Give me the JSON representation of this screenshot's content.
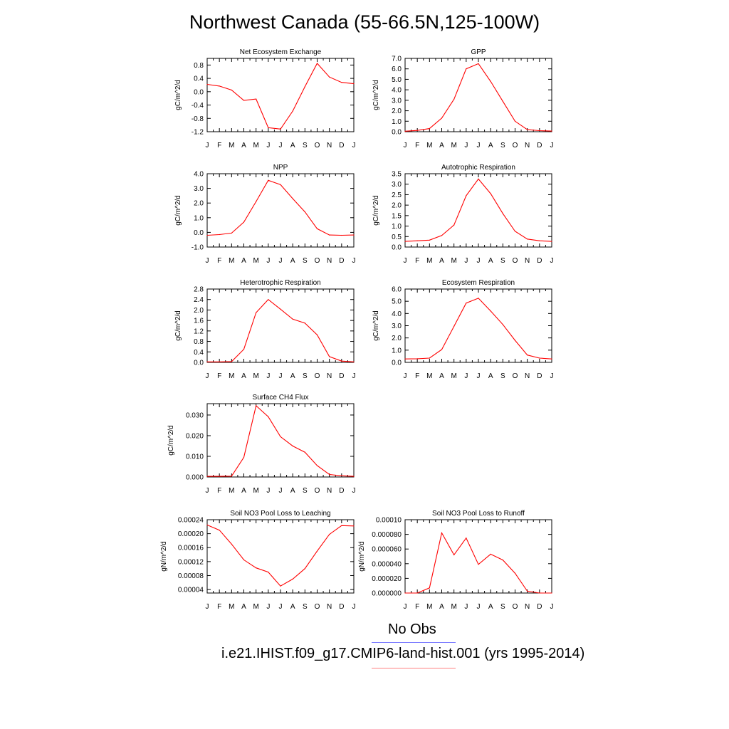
{
  "title": "Northwest Canada (55-66.5N,125-100W)",
  "legend": {
    "obs_label": "No Obs",
    "obs_color": "#8080ff",
    "model_label": "i.e21.IHIST.f09_g17.CMIP6-land-hist.001 (yrs 1995-2014)",
    "model_color": "#ff8080"
  },
  "series_color": "#ff0000",
  "chart_data": [
    {
      "type": "line",
      "title": "Net Ecosystem Exchange",
      "ylabel": "gC/m^2/d",
      "categories": [
        "J",
        "F",
        "M",
        "A",
        "M",
        "J",
        "J",
        "A",
        "S",
        "O",
        "N",
        "D",
        "J"
      ],
      "values": [
        0.22,
        0.17,
        0.05,
        -0.26,
        -0.22,
        -1.08,
        -1.12,
        -0.58,
        0.15,
        0.85,
        0.44,
        0.28,
        0.24
      ],
      "ylim": [
        -1.2,
        1.0
      ],
      "yticks": [
        "-1.2",
        "-0.8",
        "-0.4",
        "0.0",
        "0.4",
        "0.8"
      ]
    },
    {
      "type": "line",
      "title": "GPP",
      "ylabel": "gC/m^2/d",
      "categories": [
        "J",
        "F",
        "M",
        "A",
        "M",
        "J",
        "J",
        "A",
        "S",
        "O",
        "N",
        "D",
        "J"
      ],
      "values": [
        0.05,
        0.12,
        0.3,
        1.3,
        3.1,
        6.0,
        6.5,
        4.8,
        2.9,
        1.0,
        0.2,
        0.1,
        0.06
      ],
      "ylim": [
        0,
        7.0
      ],
      "yticks": [
        "0.0",
        "1.0",
        "2.0",
        "3.0",
        "4.0",
        "5.0",
        "6.0",
        "7.0"
      ]
    },
    {
      "type": "line",
      "title": "NPP",
      "ylabel": "gC/m^2/d",
      "categories": [
        "J",
        "F",
        "M",
        "A",
        "M",
        "J",
        "J",
        "A",
        "S",
        "O",
        "N",
        "D",
        "J"
      ],
      "values": [
        -0.2,
        -0.15,
        -0.05,
        0.7,
        2.1,
        3.55,
        3.25,
        2.3,
        1.4,
        0.25,
        -0.18,
        -0.2,
        -0.18
      ],
      "ylim": [
        -1.0,
        4.0
      ],
      "yticks": [
        "-1.0",
        "0.0",
        "1.0",
        "2.0",
        "3.0",
        "4.0"
      ]
    },
    {
      "type": "line",
      "title": "Autotrophic Respiration",
      "ylabel": "gC/m^2/d",
      "categories": [
        "J",
        "F",
        "M",
        "A",
        "M",
        "J",
        "J",
        "A",
        "S",
        "O",
        "N",
        "D",
        "J"
      ],
      "values": [
        0.27,
        0.3,
        0.33,
        0.55,
        1.05,
        2.45,
        3.25,
        2.55,
        1.6,
        0.75,
        0.38,
        0.3,
        0.27
      ],
      "ylim": [
        0,
        3.5
      ],
      "yticks": [
        "0.0",
        "0.5",
        "1.0",
        "1.5",
        "2.0",
        "2.5",
        "3.0",
        "3.5"
      ]
    },
    {
      "type": "line",
      "title": "Heterotrophic Respiration",
      "ylabel": "gC/m^2/d",
      "categories": [
        "J",
        "F",
        "M",
        "A",
        "M",
        "J",
        "J",
        "A",
        "S",
        "O",
        "N",
        "D",
        "J"
      ],
      "values": [
        0.02,
        0.02,
        0.03,
        0.5,
        1.9,
        2.4,
        2.03,
        1.65,
        1.5,
        1.05,
        0.22,
        0.05,
        0.02
      ],
      "ylim": [
        0,
        2.8
      ],
      "yticks": [
        "0.0",
        "0.4",
        "0.8",
        "1.2",
        "1.6",
        "2.0",
        "2.4",
        "2.8"
      ]
    },
    {
      "type": "line",
      "title": "Ecosystem Respiration",
      "ylabel": "gC/m^2/d",
      "categories": [
        "J",
        "F",
        "M",
        "A",
        "M",
        "J",
        "J",
        "A",
        "S",
        "O",
        "N",
        "D",
        "J"
      ],
      "values": [
        0.28,
        0.3,
        0.35,
        1.05,
        2.95,
        4.85,
        5.25,
        4.2,
        3.1,
        1.8,
        0.6,
        0.35,
        0.28
      ],
      "ylim": [
        0,
        6.0
      ],
      "yticks": [
        "0.0",
        "1.0",
        "2.0",
        "3.0",
        "4.0",
        "5.0",
        "6.0"
      ]
    },
    {
      "type": "line",
      "title": "Surface CH4 Flux",
      "ylabel": "gC/m^2/d",
      "categories": [
        "J",
        "F",
        "M",
        "A",
        "M",
        "J",
        "J",
        "A",
        "S",
        "O",
        "N",
        "D",
        "J"
      ],
      "values": [
        0.0003,
        0.0003,
        0.0004,
        0.0095,
        0.0345,
        0.0292,
        0.0195,
        0.015,
        0.012,
        0.0055,
        0.0012,
        0.0006,
        0.0003
      ],
      "ylim": [
        0,
        0.0355
      ],
      "yticks": [
        "0.000",
        "0.010",
        "0.020",
        "0.030"
      ]
    },
    {
      "type": "line",
      "title": "Soil NO3 Pool Loss to Leaching",
      "ylabel": "gN/m^2/d",
      "categories": [
        "J",
        "F",
        "M",
        "A",
        "M",
        "J",
        "J",
        "A",
        "S",
        "O",
        "N",
        "D",
        "J"
      ],
      "values": [
        0.000225,
        0.00021,
        0.00017,
        0.000125,
        0.000102,
        9e-05,
        5e-05,
        7e-05,
        0.0001,
        0.00015,
        0.000198,
        0.000223,
        0.000222
      ],
      "ylim": [
        3e-05,
        0.00024
      ],
      "yticks": [
        "0.00004",
        "0.00008",
        "0.00012",
        "0.00016",
        "0.00020",
        "0.00024"
      ]
    },
    {
      "type": "line",
      "title": "Soil NO3 Pool Loss to Runoff",
      "ylabel": "gN/m^2/d",
      "categories": [
        "J",
        "F",
        "M",
        "A",
        "M",
        "J",
        "J",
        "A",
        "S",
        "O",
        "N",
        "D",
        "J"
      ],
      "values": [
        0.0,
        0.0,
        7e-06,
        8.2e-05,
        5.2e-05,
        7.5e-05,
        3.9e-05,
        5.3e-05,
        4.5e-05,
        2.7e-05,
        2.5e-06,
        0.0,
        0.0
      ],
      "ylim": [
        0,
        0.0001
      ],
      "yticks": [
        "0.000000",
        "0.000020",
        "0.000040",
        "0.000060",
        "0.000080",
        "0.00010"
      ]
    }
  ]
}
